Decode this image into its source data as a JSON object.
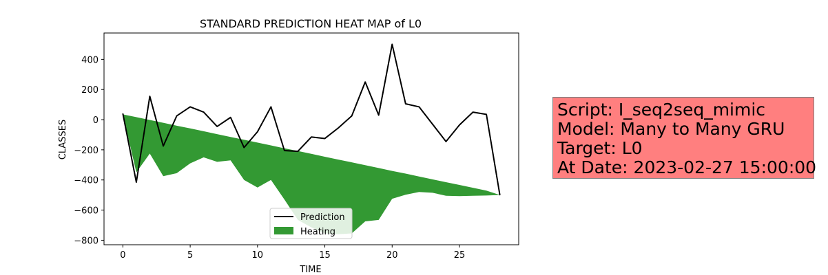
{
  "chart_data": {
    "type": "line",
    "title": "STANDARD PREDICTION HEAT MAP of L0",
    "xlabel": "TIME",
    "ylabel": "CLASSES",
    "xlim": [
      -1.4,
      29.4
    ],
    "ylim": [
      -830,
      575
    ],
    "xticks": [
      0,
      5,
      10,
      15,
      20,
      25
    ],
    "yticks": [
      -800,
      -600,
      -400,
      -200,
      0,
      200,
      400
    ],
    "x": [
      0,
      1,
      2,
      3,
      4,
      5,
      6,
      7,
      8,
      9,
      10,
      11,
      12,
      13,
      14,
      15,
      16,
      17,
      18,
      19,
      20,
      21,
      22,
      23,
      24,
      25,
      26,
      27,
      28
    ],
    "series": [
      {
        "name": "Prediction",
        "type": "line",
        "color": "#000000",
        "values": [
          40,
          -415,
          155,
          -175,
          25,
          85,
          50,
          -45,
          15,
          -185,
          -80,
          85,
          -205,
          -210,
          -115,
          -125,
          -55,
          25,
          250,
          30,
          500,
          105,
          85,
          -30,
          -145,
          -35,
          50,
          35,
          -500
        ]
      },
      {
        "name": "Heating",
        "type": "area",
        "color": "#339933",
        "upper": [
          35,
          17,
          -2,
          -21,
          -40,
          -58,
          -77,
          -96,
          -115,
          -133,
          -152,
          -171,
          -190,
          -208,
          -227,
          -246,
          -265,
          -283,
          -302,
          -321,
          -340,
          -358,
          -377,
          -396,
          -415,
          -433,
          -452,
          -471,
          -500
        ],
        "lower": [
          35,
          -350,
          -225,
          -375,
          -355,
          -290,
          -250,
          -280,
          -270,
          -400,
          -450,
          -400,
          -530,
          -665,
          -715,
          -755,
          -760,
          -755,
          -675,
          -665,
          -525,
          -498,
          -480,
          -485,
          -505,
          -507,
          -505,
          -503,
          -500
        ]
      }
    ],
    "legend": {
      "position": "lower-center",
      "entries": [
        "Prediction",
        "Heating"
      ]
    },
    "grid": false
  },
  "info_box": {
    "background": "#ff7f7f",
    "lines": [
      "Script: I_seq2seq_mimic",
      "Model: Many to Many GRU",
      "Target: L0",
      "At Date: 2023-02-27 15:00:00"
    ]
  }
}
